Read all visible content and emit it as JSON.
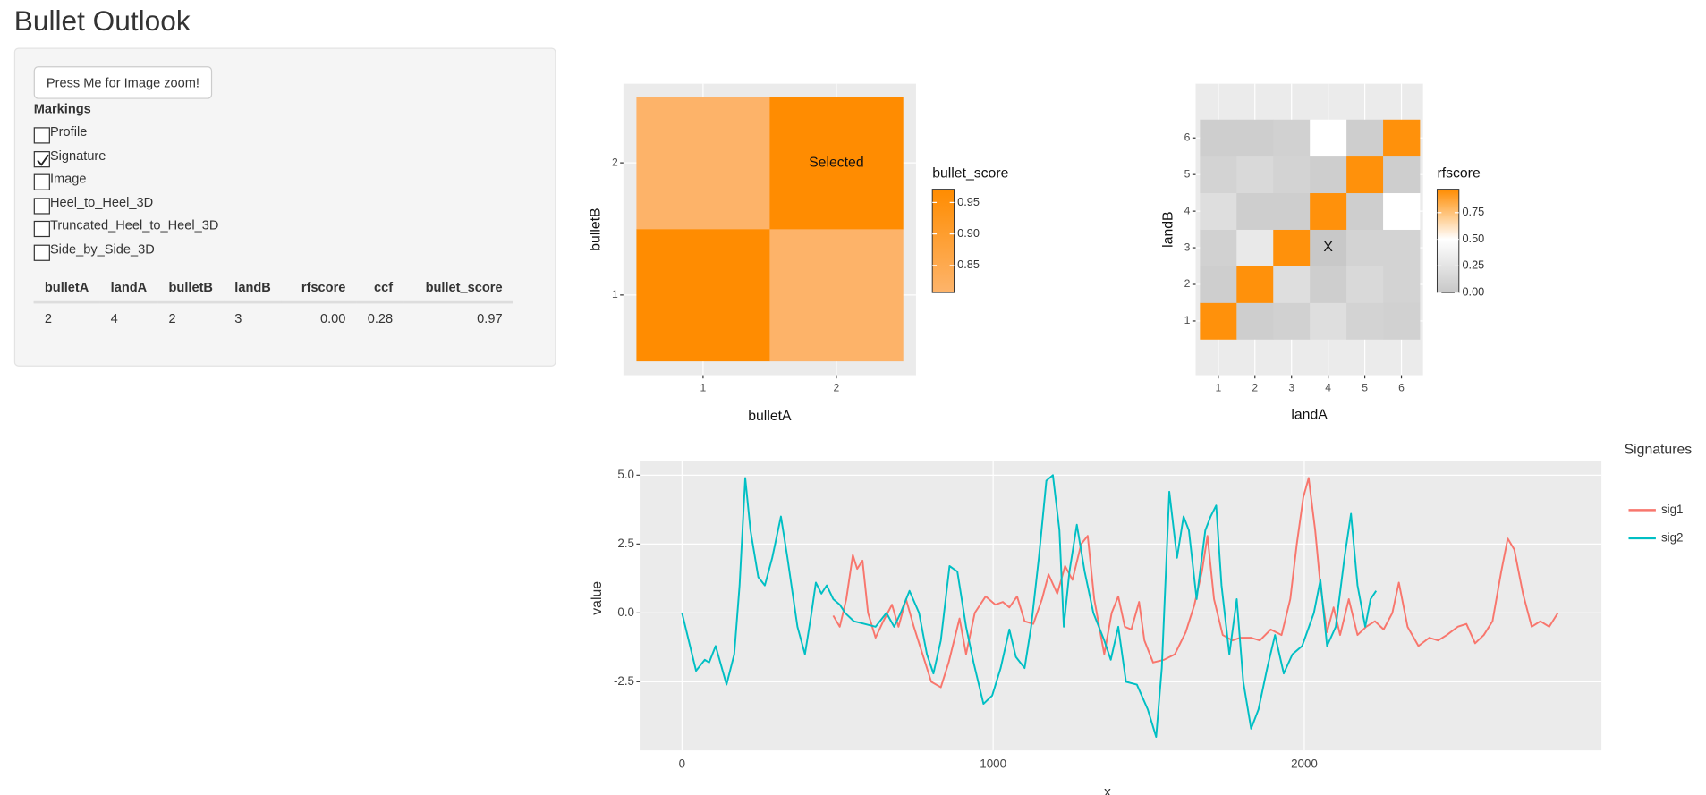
{
  "title": "Bullet Outlook",
  "sidebar": {
    "button": "Press Me for Image zoom!",
    "markings_label": "Markings",
    "checkboxes": [
      {
        "label": "Profile",
        "checked": false
      },
      {
        "label": "Signature",
        "checked": true
      },
      {
        "label": "Image",
        "checked": false
      },
      {
        "label": "Heel_to_Heel_3D",
        "checked": false
      },
      {
        "label": "Truncated_Heel_to_Heel_3D",
        "checked": false
      },
      {
        "label": "Side_by_Side_3D",
        "checked": false
      }
    ],
    "table": {
      "columns": [
        "bulletA",
        "landA",
        "bulletB",
        "landB",
        "rfscore",
        "ccf",
        "bullet_score"
      ],
      "rows": [
        [
          "2",
          "4",
          "2",
          "3",
          "0.00",
          "0.28",
          "0.97"
        ]
      ]
    }
  },
  "chart_data": [
    {
      "type": "heatmap",
      "x_label": "bulletA",
      "y_label": "bulletB",
      "x": [
        1,
        2
      ],
      "y": [
        1,
        2
      ],
      "values": [
        [
          0.97,
          0.81
        ],
        [
          0.81,
          0.97
        ]
      ],
      "legend_title": "bullet_score",
      "colors": [
        "#fdb46b",
        "#ff8c00"
      ],
      "lim": [
        0.807,
        0.971
      ],
      "ticks": [
        0.85,
        {
          "value": 0.9,
          "label": "0.90"
        },
        0.95
      ],
      "annotation": {
        "text": "Selected",
        "x": 2,
        "y": 2
      }
    },
    {
      "type": "heatmap",
      "x_label": "landA",
      "y_label": "landB",
      "x": [
        1,
        2,
        3,
        4,
        5,
        6
      ],
      "y": [
        1,
        2,
        3,
        4,
        5,
        6
      ],
      "values": [
        [
          0.95,
          0.05,
          0.08,
          0.2,
          0.1,
          0.08
        ],
        [
          0.05,
          0.95,
          0.2,
          0.05,
          0.15,
          0.1
        ],
        [
          0.08,
          0.3,
          0.95,
          0.0,
          0.1,
          0.1
        ],
        [
          0.2,
          0.05,
          0.05,
          0.95,
          0.05,
          0.5
        ],
        [
          0.1,
          0.15,
          0.1,
          0.05,
          0.95,
          0.05
        ],
        [
          0.05,
          0.05,
          0.08,
          0.5,
          0.05,
          0.95
        ]
      ],
      "legend_title": "rfscore",
      "colors": [
        "#c8c8c8",
        "#ffffff",
        "#ff8c00"
      ],
      "midpoint": 0.5,
      "lim": [
        0,
        0.97
      ],
      "ticks": [
        {
          "value": 0,
          "label": "0.00"
        },
        0.25,
        {
          "value": 0.5,
          "label": "0.50"
        },
        0.75
      ],
      "annotation": {
        "text": "X",
        "x": 4,
        "y": 3
      }
    },
    {
      "type": "line",
      "x_label": "x",
      "y_label": "value",
      "legend_title": "Signatures",
      "xlim": [
        -136,
        2955
      ],
      "ylim": [
        -4.99,
        5.51
      ],
      "xticks": [
        0,
        1000,
        2000
      ],
      "yticks": [
        {
          "value": 5,
          "label": "5.0"
        },
        2.5,
        {
          "value": 0,
          "label": "0.0"
        },
        -2.5
      ],
      "grid": true,
      "series": [
        {
          "name": "sig1",
          "color": "#f8766d",
          "x": [
            486,
            507,
            528,
            549,
            563,
            580,
            598,
            622,
            647,
            675,
            696,
            720,
            745,
            773,
            801,
            832,
            857,
            892,
            913,
            941,
            976,
            1007,
            1031,
            1052,
            1077,
            1101,
            1129,
            1157,
            1178,
            1206,
            1231,
            1255,
            1283,
            1304,
            1325,
            1357,
            1381,
            1402,
            1423,
            1444,
            1469,
            1486,
            1514,
            1549,
            1584,
            1619,
            1647,
            1671,
            1689,
            1710,
            1738,
            1769,
            1794,
            1829,
            1857,
            1892,
            1927,
            1955,
            1976,
            1997,
            2014,
            2035,
            2052,
            2073,
            2094,
            2115,
            2143,
            2171,
            2199,
            2227,
            2255,
            2283,
            2304,
            2332,
            2367,
            2402,
            2430,
            2458,
            2493,
            2521,
            2549,
            2577,
            2605,
            2633,
            2654,
            2675,
            2703,
            2731,
            2759,
            2787,
            2815
          ],
          "values": [
            -0.1,
            -0.5,
            0.5,
            2.1,
            1.6,
            1.9,
            0.0,
            -0.9,
            -0.3,
            0.3,
            -0.5,
            0.5,
            -0.5,
            -1.5,
            -2.5,
            -2.7,
            -1.8,
            -0.2,
            -1.5,
            0.0,
            0.6,
            0.3,
            0.4,
            0.2,
            0.6,
            -0.3,
            -0.4,
            0.5,
            1.4,
            0.7,
            1.7,
            1.2,
            2.5,
            2.8,
            0.5,
            -1.5,
            0.0,
            0.6,
            -0.5,
            -0.6,
            0.4,
            -1.0,
            -1.8,
            -1.7,
            -1.5,
            -0.7,
            0.3,
            1.5,
            2.8,
            0.5,
            -0.8,
            -1.0,
            -0.9,
            -0.9,
            -1.0,
            -0.6,
            -0.8,
            0.5,
            2.5,
            4.2,
            4.9,
            3.0,
            1.0,
            -0.7,
            0.2,
            -0.8,
            0.5,
            -0.8,
            -0.5,
            -0.3,
            -0.6,
            0.0,
            1.1,
            -0.5,
            -1.2,
            -0.9,
            -1.0,
            -0.8,
            -0.5,
            -0.4,
            -1.1,
            -0.8,
            -0.3,
            1.5,
            2.7,
            2.3,
            0.7,
            -0.5,
            -0.3,
            -0.5,
            0.0
          ]
        },
        {
          "name": "sig2",
          "color": "#00bfc4",
          "x": [
            0,
            45,
            73,
            87,
            108,
            143,
            168,
            185,
            203,
            220,
            245,
            266,
            290,
            318,
            339,
            371,
            395,
            416,
            430,
            448,
            465,
            486,
            507,
            524,
            552,
            587,
            622,
            657,
            682,
            703,
            731,
            762,
            787,
            808,
            832,
            860,
            885,
            913,
            937,
            969,
            997,
            1024,
            1052,
            1073,
            1101,
            1122,
            1147,
            1171,
            1192,
            1213,
            1227,
            1245,
            1269,
            1294,
            1322,
            1357,
            1378,
            1402,
            1427,
            1462,
            1497,
            1524,
            1542,
            1566,
            1591,
            1612,
            1629,
            1654,
            1682,
            1699,
            1717,
            1734,
            1759,
            1783,
            1804,
            1829,
            1853,
            1881,
            1906,
            1934,
            1962,
            1993,
            2031,
            2052,
            2073,
            2101,
            2129,
            2150,
            2171,
            2196,
            2213,
            2231
          ],
          "values": [
            0.0,
            -2.1,
            -1.7,
            -1.8,
            -1.2,
            -2.6,
            -1.5,
            1.0,
            4.9,
            3.0,
            1.3,
            1.0,
            2.0,
            3.5,
            2.0,
            -0.5,
            -1.5,
            0.0,
            1.1,
            0.7,
            1.0,
            0.5,
            0.3,
            0.0,
            -0.3,
            -0.4,
            -0.5,
            0.0,
            -0.5,
            0.0,
            0.8,
            0.0,
            -1.5,
            -2.2,
            -1.0,
            1.7,
            1.5,
            -0.5,
            -1.8,
            -3.3,
            -3.0,
            -2.0,
            -0.6,
            -1.6,
            -2.0,
            -0.5,
            2.0,
            4.8,
            5.0,
            3.0,
            -0.5,
            1.5,
            3.2,
            1.5,
            0.0,
            -1.0,
            -1.7,
            -0.5,
            -2.5,
            -2.6,
            -3.5,
            -4.5,
            -2.0,
            4.4,
            2.0,
            3.5,
            3.0,
            0.5,
            3.0,
            3.5,
            3.9,
            1.0,
            -1.5,
            0.5,
            -2.5,
            -4.2,
            -3.5,
            -2.0,
            -0.8,
            -2.2,
            -1.5,
            -1.2,
            0.0,
            1.2,
            -1.2,
            -0.5,
            2.0,
            3.6,
            1.0,
            -0.5,
            0.5,
            0.8
          ]
        }
      ]
    }
  ]
}
